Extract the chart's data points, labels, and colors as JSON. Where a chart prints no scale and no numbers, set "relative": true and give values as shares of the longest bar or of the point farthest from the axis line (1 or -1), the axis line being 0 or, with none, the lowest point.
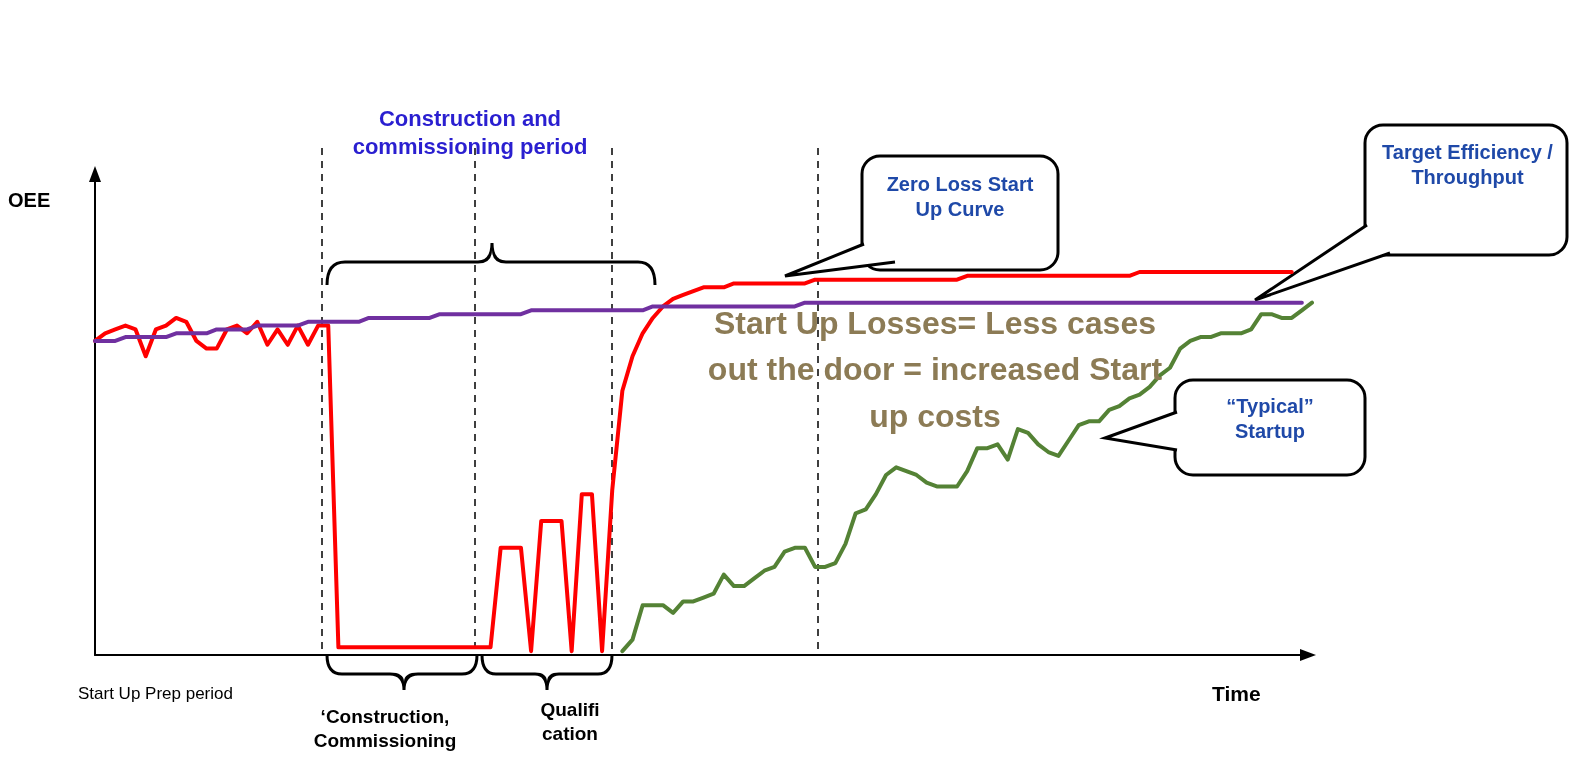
{
  "chart_data": {
    "type": "line",
    "relative": true,
    "marker": "none",
    "ylabel": "OEE",
    "xlabel": "Time",
    "categories": [
      null,
      null,
      null,
      null,
      null,
      null,
      null,
      null,
      null,
      null,
      null,
      null,
      null,
      null,
      null,
      null,
      null,
      null,
      null,
      null,
      null,
      null,
      null,
      null,
      null,
      null,
      null,
      null,
      null,
      null,
      null,
      null,
      null,
      null,
      null,
      null,
      null,
      null,
      null,
      null,
      null,
      null,
      null,
      null,
      null,
      null,
      null,
      null,
      null,
      null,
      null,
      null,
      null,
      null,
      null,
      null,
      null,
      null,
      null,
      null,
      null,
      null,
      null,
      null,
      null,
      null,
      null,
      null,
      null,
      null,
      null,
      null,
      null,
      null,
      null,
      null,
      null,
      null,
      null,
      null,
      null,
      null,
      null,
      null,
      null,
      null,
      null,
      null,
      null,
      null,
      null,
      null,
      null,
      null,
      null,
      null,
      null,
      null,
      null,
      null,
      null,
      null,
      null,
      null,
      null,
      null,
      null,
      null,
      null,
      null,
      null,
      null,
      null,
      null,
      null,
      null,
      null,
      null,
      null,
      null,
      null
    ],
    "series": [
      {
        "color": "#ff0000",
        "values": [
          0.82,
          0.84,
          0.85,
          0.86,
          0.85,
          0.78,
          0.85,
          0.86,
          0.88,
          0.87,
          0.82,
          0.8,
          0.8,
          0.85,
          0.86,
          0.84,
          0.87,
          0.81,
          0.85,
          0.81,
          0.86,
          0.81,
          0.86,
          0.86,
          0.02,
          0.02,
          0.02,
          0.02,
          0.02,
          0.02,
          0.02,
          0.02,
          0.02,
          0.02,
          0.02,
          0.02,
          0.02,
          0.02,
          0.02,
          0.02,
          0.28,
          0.28,
          0.28,
          0.01,
          0.35,
          0.35,
          0.35,
          0.01,
          0.42,
          0.42,
          0.01,
          0.43,
          0.69,
          0.78,
          0.84,
          0.88,
          0.91,
          0.93,
          0.94,
          0.95,
          0.96,
          0.96,
          0.96,
          0.97,
          0.97,
          0.97,
          0.97,
          0.97,
          0.97,
          0.97,
          0.97,
          0.98,
          0.98,
          0.98,
          0.98,
          0.98,
          0.98,
          0.98,
          0.98,
          0.98,
          0.98,
          0.98,
          0.98,
          0.98,
          0.98,
          0.98,
          0.99,
          0.99,
          0.99,
          0.99,
          0.99,
          0.99,
          0.99,
          0.99,
          0.99,
          0.99,
          0.99,
          0.99,
          0.99,
          0.99,
          0.99,
          0.99,
          0.99,
          1,
          1,
          1,
          1,
          1,
          1,
          1,
          1,
          1,
          1,
          1,
          1,
          1,
          1,
          1,
          1,
          null,
          null
        ]
      },
      {
        "color": "#7030a0",
        "values": [
          0.82,
          0.82,
          0.82,
          0.83,
          0.83,
          0.83,
          0.83,
          0.83,
          0.84,
          0.84,
          0.84,
          0.84,
          0.85,
          0.85,
          0.85,
          0.85,
          0.86,
          0.86,
          0.86,
          0.86,
          0.86,
          0.87,
          0.87,
          0.87,
          0.87,
          0.87,
          0.87,
          0.88,
          0.88,
          0.88,
          0.88,
          0.88,
          0.88,
          0.88,
          0.89,
          0.89,
          0.89,
          0.89,
          0.89,
          0.89,
          0.89,
          0.89,
          0.89,
          0.9,
          0.9,
          0.9,
          0.9,
          0.9,
          0.9,
          0.9,
          0.9,
          0.9,
          0.9,
          0.9,
          0.9,
          0.91,
          0.91,
          0.91,
          0.91,
          0.91,
          0.91,
          0.91,
          0.91,
          0.91,
          0.91,
          0.91,
          0.91,
          0.91,
          0.91,
          0.91,
          0.92,
          0.92,
          0.92,
          0.92,
          0.92,
          0.92,
          0.92,
          0.92,
          0.92,
          0.92,
          0.92,
          0.92,
          0.92,
          0.92,
          0.92,
          0.92,
          0.92,
          0.92,
          0.92,
          0.92,
          0.92,
          0.92,
          0.92,
          0.92,
          0.92,
          0.92,
          0.92,
          0.92,
          0.92,
          0.92,
          0.92,
          0.92,
          0.92,
          0.92,
          0.92,
          0.92,
          0.92,
          0.92,
          0.92,
          0.92,
          0.92,
          0.92,
          0.92,
          0.92,
          0.92,
          0.92,
          0.92,
          0.92,
          0.92,
          0.92,
          null
        ]
      },
      {
        "color": "#548235",
        "values": [
          null,
          null,
          null,
          null,
          null,
          null,
          null,
          null,
          null,
          null,
          null,
          null,
          null,
          null,
          null,
          null,
          null,
          null,
          null,
          null,
          null,
          null,
          null,
          null,
          null,
          null,
          null,
          null,
          null,
          null,
          null,
          null,
          null,
          null,
          null,
          null,
          null,
          null,
          null,
          null,
          null,
          null,
          null,
          null,
          null,
          null,
          null,
          null,
          null,
          null,
          null,
          null,
          0.01,
          0.04,
          0.13,
          0.13,
          0.13,
          0.11,
          0.14,
          0.14,
          0.15,
          0.16,
          0.21,
          0.18,
          0.18,
          0.2,
          0.22,
          0.23,
          0.27,
          0.28,
          0.28,
          0.23,
          0.23,
          0.24,
          0.29,
          0.37,
          0.38,
          0.42,
          0.47,
          0.49,
          0.48,
          0.47,
          0.45,
          0.44,
          0.44,
          0.44,
          0.48,
          0.54,
          0.54,
          0.55,
          0.51,
          0.59,
          0.58,
          0.55,
          0.53,
          0.52,
          0.56,
          0.6,
          0.61,
          0.61,
          0.64,
          0.65,
          0.67,
          0.68,
          0.7,
          0.73,
          0.75,
          0.8,
          0.82,
          0.83,
          0.83,
          0.84,
          0.84,
          0.84,
          0.85,
          0.89,
          0.89,
          0.88,
          0.88,
          0.9,
          0.92
        ]
      }
    ],
    "annotations": [
      "Construction and commissioning period",
      "Start Up Prep period",
      "‘Construction, Commissioning",
      "Qualifi cation",
      "Zero Loss Start Up Curve",
      "Target Efficiency / Throughput",
      "“Typical” Startup",
      "Start Up Losses= Less cases out the door = increased Start up costs"
    ]
  }
}
